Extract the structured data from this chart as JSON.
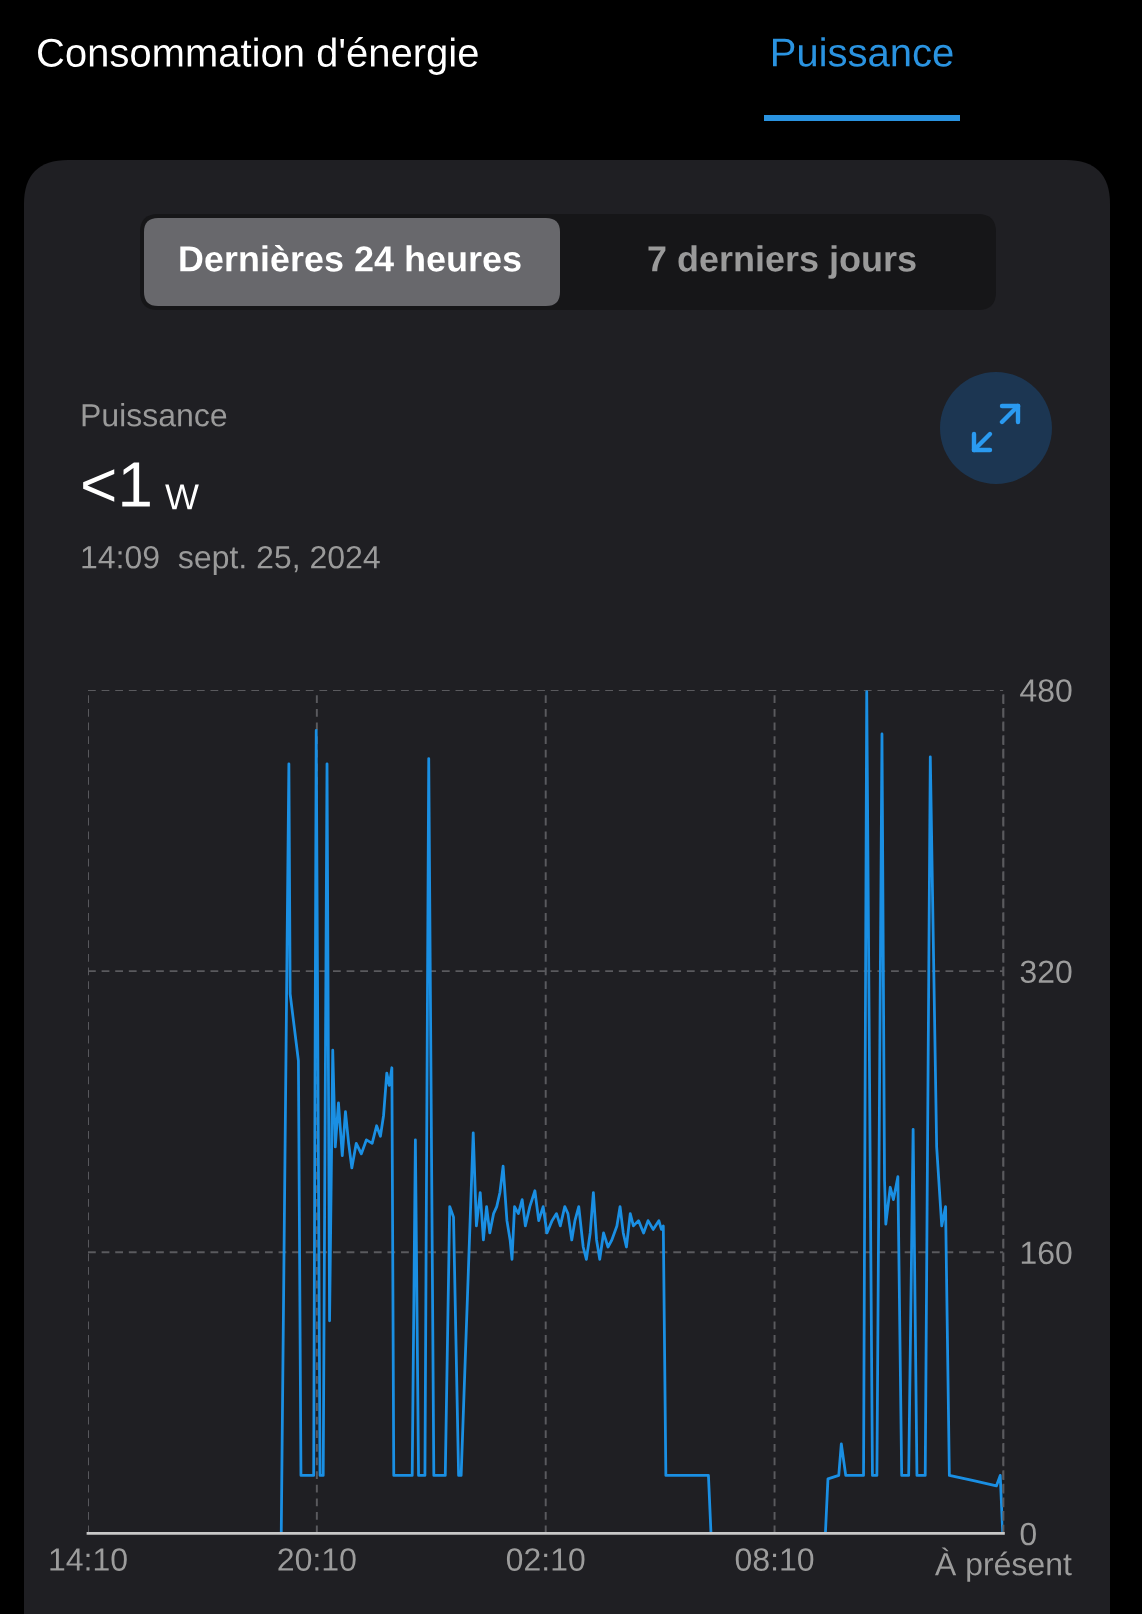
{
  "chart_data": {
    "type": "line",
    "annotations": [
      "Consommation d'énergie",
      "Puissance",
      "Dernières 24 heures",
      "7 derniers jours",
      "Puissance",
      "<1",
      "W",
      "14:09  sept. 25, 2024"
    ],
    "x": [
      "2024-09-24T14:10",
      "2024-09-24T19:14",
      "2024-09-24T19:26",
      "2024-09-24T19:28",
      "2024-09-24T19:41",
      "2024-09-24T19:45",
      "2024-09-24T20:05",
      "2024-09-24T20:09",
      "2024-09-24T20:15",
      "2024-09-24T20:20",
      "2024-09-24T20:26",
      "2024-09-24T20:30",
      "2024-09-24T20:35",
      "2024-09-24T20:39",
      "2024-09-24T20:44",
      "2024-09-24T20:50",
      "2024-09-24T20:55",
      "2024-09-24T21:00",
      "2024-09-24T21:05",
      "2024-09-24T21:12",
      "2024-09-24T21:20",
      "2024-09-24T21:28",
      "2024-09-24T21:37",
      "2024-09-24T21:44",
      "2024-09-24T21:50",
      "2024-09-24T21:55",
      "2024-09-24T22:00",
      "2024-09-24T22:04",
      "2024-09-24T22:08",
      "2024-09-24T22:11",
      "2024-09-24T22:40",
      "2024-09-24T22:45",
      "2024-09-24T22:50",
      "2024-09-24T23:00",
      "2024-09-24T23:06",
      "2024-09-24T23:14",
      "2024-09-24T23:32",
      "2024-09-24T23:39",
      "2024-09-24T23:45",
      "2024-09-24T23:53",
      "2024-09-24T23:57",
      "2024-09-25T00:16",
      "2024-09-25T00:21",
      "2024-09-25T00:27",
      "2024-09-25T00:32",
      "2024-09-25T00:37",
      "2024-09-25T00:42",
      "2024-09-25T00:48",
      "2024-09-25T00:53",
      "2024-09-25T00:58",
      "2024-09-25T01:03",
      "2024-09-25T01:09",
      "2024-09-25T01:14",
      "2024-09-25T01:17",
      "2024-09-25T01:21",
      "2024-09-25T01:27",
      "2024-09-25T01:33",
      "2024-09-25T01:38",
      "2024-09-25T01:45",
      "2024-09-25T01:53",
      "2024-09-25T01:59",
      "2024-09-25T02:06",
      "2024-09-25T02:12",
      "2024-09-25T02:20",
      "2024-09-25T02:27",
      "2024-09-25T02:33",
      "2024-09-25T02:40",
      "2024-09-25T02:45",
      "2024-09-25T02:51",
      "2024-09-25T02:56",
      "2024-09-25T03:02",
      "2024-09-25T03:09",
      "2024-09-25T03:14",
      "2024-09-25T03:20",
      "2024-09-25T03:25",
      "2024-09-25T03:30",
      "2024-09-25T03:35",
      "2024-09-25T03:41",
      "2024-09-25T03:48",
      "2024-09-25T03:54",
      "2024-09-25T04:02",
      "2024-09-25T04:07",
      "2024-09-25T04:12",
      "2024-09-25T04:17",
      "2024-09-25T04:23",
      "2024-09-25T04:28",
      "2024-09-25T04:36",
      "2024-09-25T04:44",
      "2024-09-25T04:51",
      "2024-09-25T04:59",
      "2024-09-25T05:08",
      "2024-09-25T05:12",
      "2024-09-25T05:15",
      "2024-09-25T05:19",
      "2024-09-25T06:26",
      "2024-09-25T06:30",
      "2024-09-25T09:30",
      "2024-09-25T09:34",
      "2024-09-25T09:51",
      "2024-09-25T09:55",
      "2024-09-25T10:02",
      "2024-09-25T10:30",
      "2024-09-25T10:35",
      "2024-09-25T10:44",
      "2024-09-25T10:51",
      "2024-09-25T10:59",
      "2024-09-25T11:03",
      "2024-09-25T11:05",
      "2024-09-25T11:12",
      "2024-09-25T11:17",
      "2024-09-25T11:24",
      "2024-09-25T11:30",
      "2024-09-25T11:41",
      "2024-09-25T11:48",
      "2024-09-25T11:54",
      "2024-09-25T12:07",
      "2024-09-25T12:15",
      "2024-09-25T12:25",
      "2024-09-25T12:33",
      "2024-09-25T12:39",
      "2024-09-25T12:45",
      "2024-09-25T13:23",
      "2024-09-25T13:59",
      "2024-09-25T14:05",
      "2024-09-25T14:09"
    ],
    "values": [
      0,
      0,
      438,
      307,
      269,
      33,
      33,
      457,
      33,
      33,
      438,
      121,
      275,
      220,
      245,
      215,
      240,
      222,
      208,
      222,
      216,
      224,
      222,
      232,
      226,
      238,
      262,
      255,
      265,
      33,
      33,
      224,
      33,
      33,
      441,
      33,
      33,
      186,
      180,
      33,
      33,
      228,
      175,
      194,
      167,
      186,
      171,
      182,
      186,
      194,
      209,
      178,
      167,
      156,
      186,
      182,
      190,
      175,
      186,
      195,
      178,
      186,
      171,
      178,
      182,
      175,
      186,
      182,
      167,
      178,
      186,
      163,
      156,
      171,
      194,
      167,
      156,
      171,
      163,
      167,
      175,
      186,
      171,
      163,
      182,
      175,
      178,
      171,
      178,
      173,
      178,
      173,
      175,
      33,
      33,
      0,
      0,
      31,
      33,
      51,
      33,
      33,
      479,
      33,
      33,
      455,
      201,
      176,
      197,
      190,
      203,
      33,
      33,
      230,
      33,
      33,
      442,
      220,
      175,
      186,
      33,
      30,
      27,
      33,
      0
    ],
    "color": "#1a8fe3",
    "xlim": [
      "2024-09-24T14:10",
      "2024-09-25T14:10"
    ],
    "xticks": [
      {
        "value": "2024-09-24T14:10",
        "label": "14:10"
      },
      {
        "value": "2024-09-24T20:10",
        "label": "20:10"
      },
      {
        "value": "2024-09-25T02:10",
        "label": "02:10"
      },
      {
        "value": "2024-09-25T08:10",
        "label": "08:10"
      },
      {
        "value": "2024-09-25T14:10",
        "label": "À présent"
      }
    ],
    "ylim": [
      0,
      480
    ],
    "yticks": [
      0,
      160,
      320,
      480
    ],
    "grid": true
  }
}
